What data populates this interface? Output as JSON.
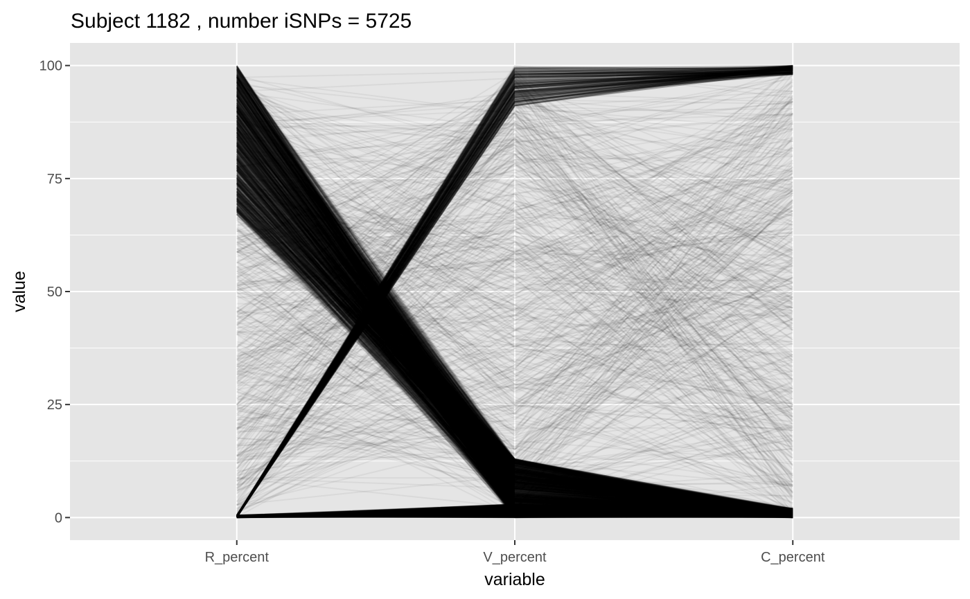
{
  "chart_data": {
    "type": "line",
    "title": "Subject 1182 , number iSNPs = 5725",
    "xlabel": "variable",
    "ylabel": "value",
    "categories": [
      "R_percent",
      "V_percent",
      "C_percent"
    ],
    "ylim": [
      -5,
      105
    ],
    "yticks": [
      0,
      25,
      50,
      75,
      100
    ],
    "ytick_labels": [
      "0",
      "25",
      "50",
      "75",
      "100"
    ],
    "grid": true,
    "legend": "none",
    "line_color": "#000000",
    "panel_color": "#e5e5e5",
    "grid_color": "#ffffff",
    "series_groups": [
      {
        "name": "",
        "from_R": [
          67,
          100
        ],
        "to_V": [
          0,
          13
        ],
        "to_C": [
          0,
          2
        ],
        "count": 1400,
        "opacity": 0.09
      },
      {
        "name": "",
        "from_R": [
          0,
          0.5
        ],
        "to_V": [
          91,
          100
        ],
        "to_C": [
          98,
          100
        ],
        "count": 140,
        "opacity": 0.18
      },
      {
        "name": "",
        "from_R": [
          0,
          0.5
        ],
        "to_V": [
          0,
          3
        ],
        "to_C": [
          0,
          1
        ],
        "count": 300,
        "opacity": 0.2
      },
      {
        "name": "",
        "from_R": [
          0,
          98
        ],
        "to_V": [
          0,
          100
        ],
        "to_C": [
          0,
          100
        ],
        "count": 500,
        "opacity": 0.05
      }
    ]
  }
}
